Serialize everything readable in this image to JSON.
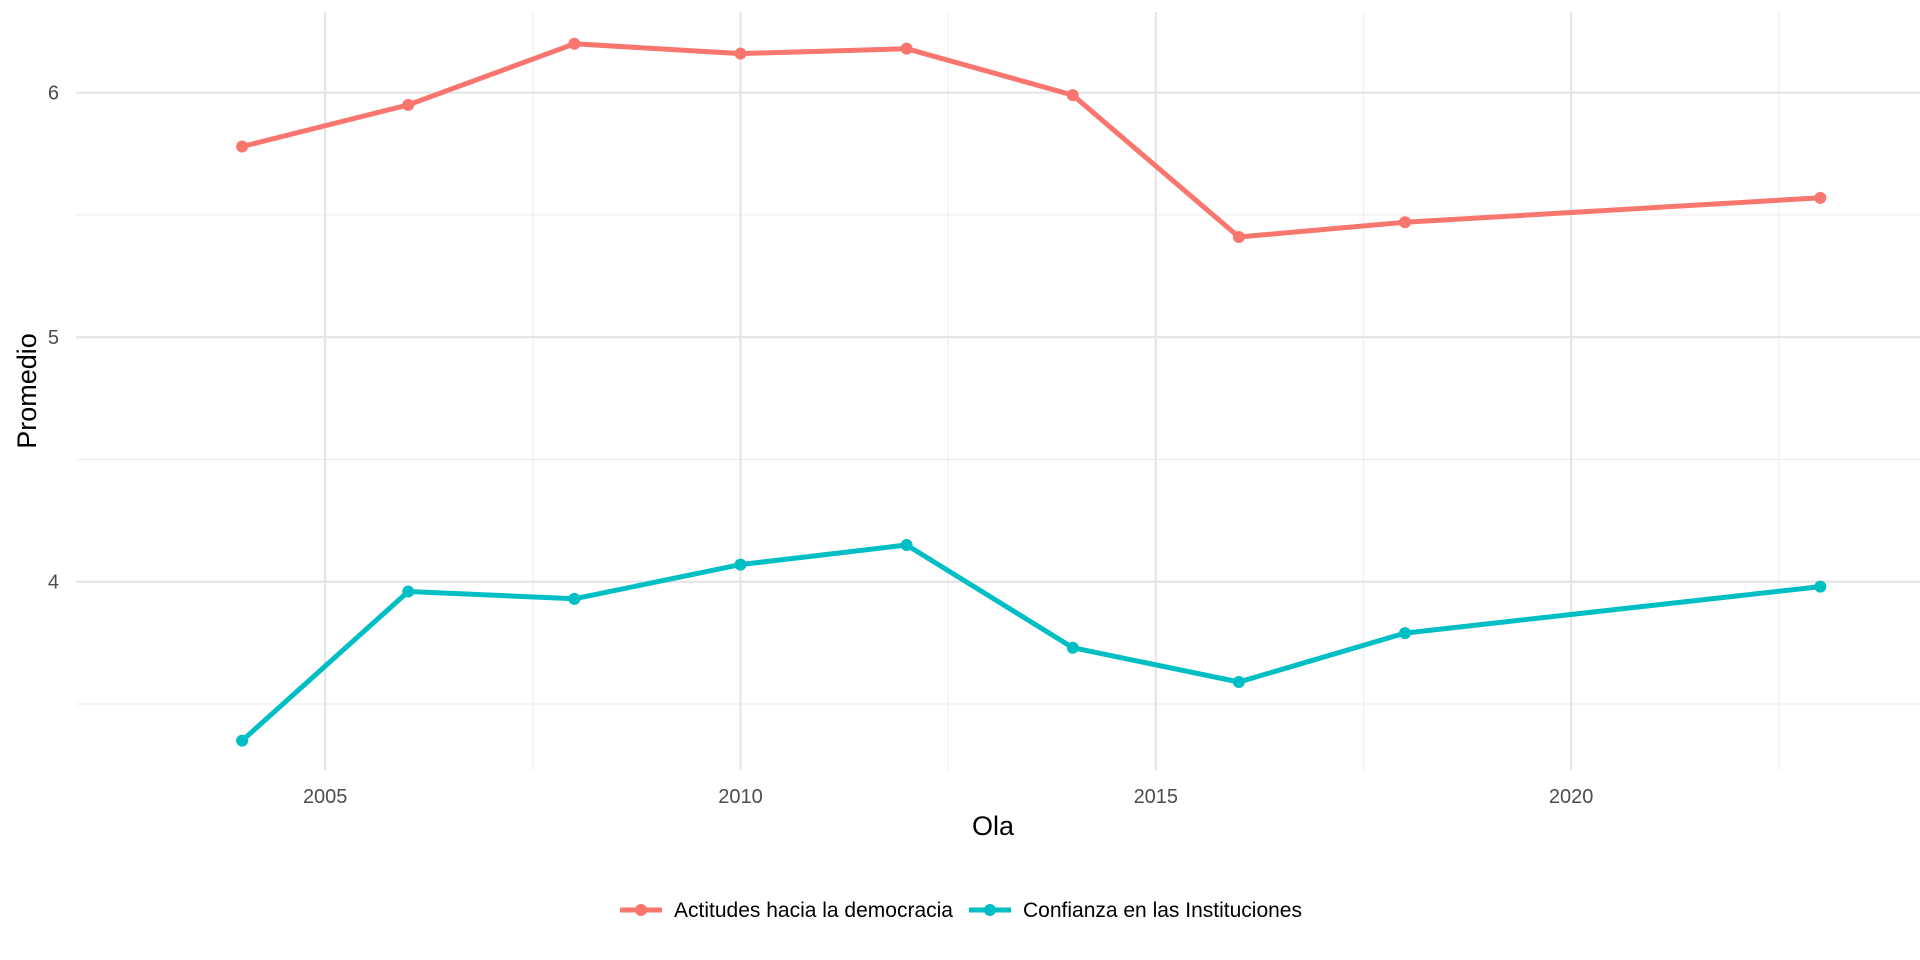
{
  "chart_data": {
    "type": "line",
    "title": "",
    "xlabel": "Ola",
    "ylabel": "Promedio",
    "x": [
      2004,
      2006,
      2008,
      2010,
      2012,
      2014,
      2016,
      2018,
      2023
    ],
    "xlim": [
      2002,
      2024.2
    ],
    "ylim": [
      3.23,
      6.33
    ],
    "x_ticks": [
      2005,
      2010,
      2015,
      2020
    ],
    "x_tick_labels": [
      "2005",
      "2010",
      "2015",
      "2020"
    ],
    "y_ticks": [
      4,
      5,
      6
    ],
    "y_tick_labels": [
      "4",
      "5",
      "6"
    ],
    "grid": true,
    "legend_position": "bottom",
    "series": [
      {
        "name": "Actitudes hacia la democracia",
        "color": "#F8766D",
        "values": [
          5.78,
          5.95,
          6.2,
          6.16,
          6.18,
          5.99,
          5.41,
          5.47,
          5.57
        ]
      },
      {
        "name": "Confianza en las Instituciones",
        "color": "#00BFC4",
        "values": [
          3.35,
          3.96,
          3.93,
          4.07,
          4.15,
          3.73,
          3.59,
          3.79,
          3.98
        ]
      }
    ]
  }
}
